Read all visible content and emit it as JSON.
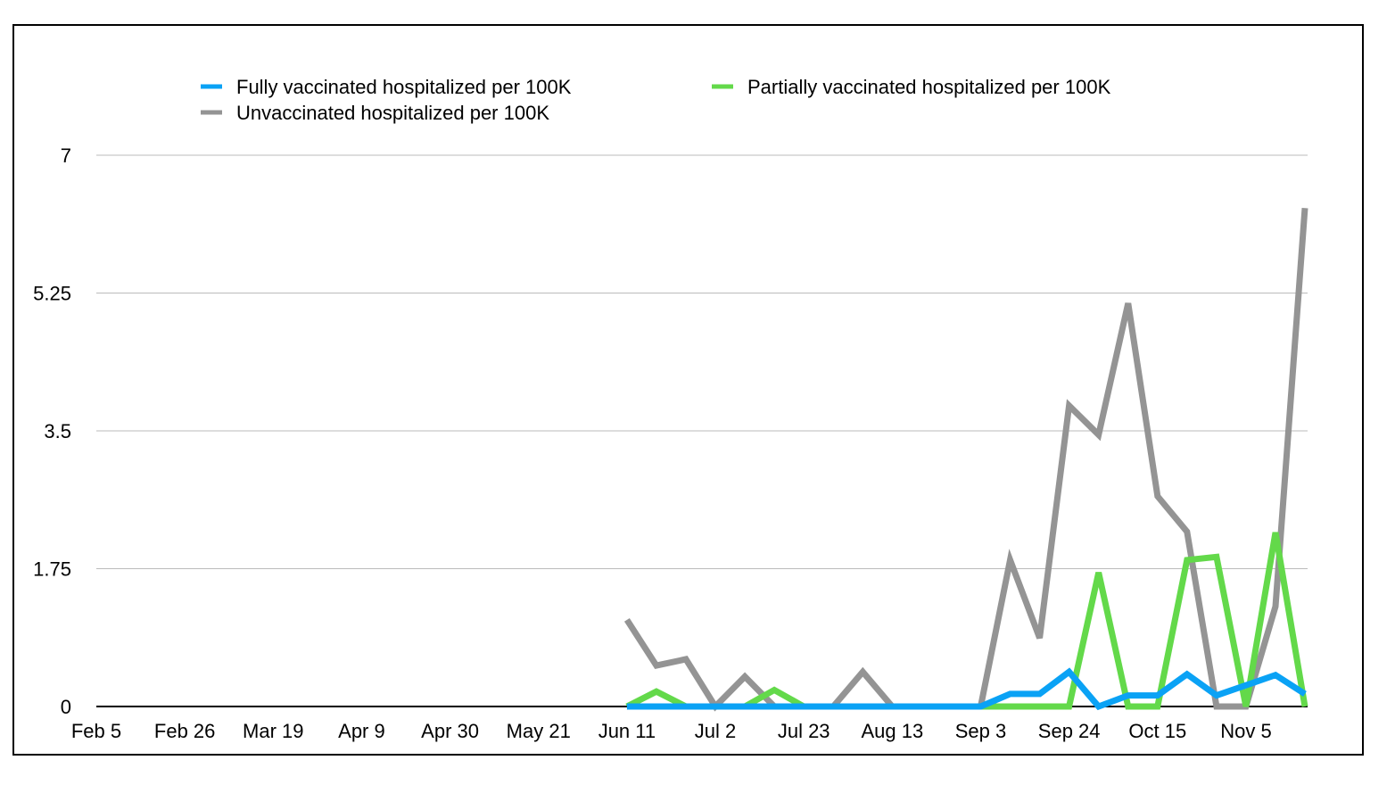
{
  "chart_data": {
    "type": "line",
    "title": "",
    "xlabel": "",
    "ylabel": "",
    "ylim": [
      0,
      7
    ],
    "yticks": [
      "0",
      "1.75",
      "3.5",
      "5.25",
      "7"
    ],
    "ytick_values": [
      0,
      1.75,
      3.5,
      5.25,
      7
    ],
    "xtick_labels": [
      "Feb 5",
      "Feb 26",
      "Mar 19",
      "Apr 9",
      "Apr 30",
      "May 21",
      "Jun 11",
      "Jul 2",
      "Jul 23",
      "Aug 13",
      "Sep 3",
      "Sep 24",
      "Oct 15",
      "Nov 5"
    ],
    "x_week_start_label": "Feb 5",
    "total_weeks": 41,
    "data_start_week": 18,
    "x": [
      "Jun 11",
      "Jun 18",
      "Jun 25",
      "Jul 2",
      "Jul 9",
      "Jul 16",
      "Jul 23",
      "Jul 30",
      "Aug 6",
      "Aug 13",
      "Aug 20",
      "Aug 27",
      "Sep 3",
      "Sep 10",
      "Sep 17",
      "Sep 24",
      "Oct 1",
      "Oct 8",
      "Oct 15",
      "Oct 22",
      "Oct 29",
      "Nov 5",
      "Nov 12",
      "Nov 19"
    ],
    "legend_position": "top",
    "grid": true,
    "series": [
      {
        "name": "Fully vaccinated hospitalized per 100K",
        "color": "#0aa2f5",
        "values": [
          0,
          0,
          0,
          0,
          0,
          0,
          0,
          0,
          0,
          0,
          0,
          0,
          0,
          0.16,
          0.16,
          0.44,
          0,
          0.14,
          0.14,
          0.41,
          0.14,
          0.27,
          0.4,
          0.16
        ]
      },
      {
        "name": "Partially vaccinated hospitalized per 100K",
        "color": "#63d94a",
        "values": [
          0,
          0.19,
          0,
          0,
          0,
          0.21,
          0,
          0,
          0,
          0,
          0,
          0,
          0,
          0,
          0,
          0,
          1.7,
          0,
          0,
          1.86,
          1.9,
          0,
          2.21,
          0
        ]
      },
      {
        "name": "Unvaccinated hospitalized per 100K",
        "color": "#949494",
        "values": [
          1.1,
          0.52,
          0.6,
          0,
          0.38,
          0,
          0,
          0,
          0.44,
          0,
          0,
          0,
          0,
          1.86,
          0.87,
          3.82,
          3.45,
          5.12,
          2.67,
          2.22,
          0,
          0,
          1.27,
          6.33
        ]
      }
    ]
  }
}
